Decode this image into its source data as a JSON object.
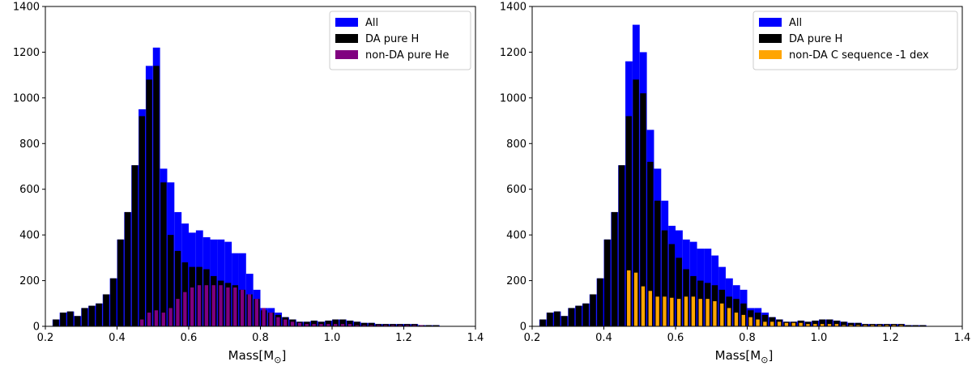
{
  "colors": {
    "all": "#0000ff",
    "da": "#000000",
    "he": "#800080",
    "c": "#ffa500"
  },
  "chart_data": [
    {
      "type": "bar",
      "xlabel_main": "Mass[M",
      "xlabel_sub": "⊙",
      "xlabel_close": "]",
      "ylabel": "",
      "xlim": [
        0.2,
        1.4
      ],
      "ylim": [
        0,
        1400
      ],
      "xticks": [
        0.2,
        0.4,
        0.6,
        0.8,
        1.0,
        1.2,
        1.4
      ],
      "xtick_labels": [
        "0.2",
        "0.4",
        "0.6",
        "0.8",
        "1.0",
        "1.2",
        "1.4"
      ],
      "yticks": [
        0,
        200,
        400,
        600,
        800,
        1000,
        1200,
        1400
      ],
      "ytick_labels": [
        "0",
        "200",
        "400",
        "600",
        "800",
        "1000",
        "1200",
        "1400"
      ],
      "legend_position": "top-right",
      "bin_edges": [
        0.22,
        0.24,
        0.26,
        0.28,
        0.3,
        0.32,
        0.34,
        0.36,
        0.38,
        0.4,
        0.42,
        0.44,
        0.46,
        0.48,
        0.5,
        0.52,
        0.54,
        0.56,
        0.58,
        0.6,
        0.62,
        0.64,
        0.66,
        0.68,
        0.7,
        0.72,
        0.74,
        0.76,
        0.78,
        0.8,
        0.82,
        0.84,
        0.86,
        0.88,
        0.9,
        0.92,
        0.94,
        0.96,
        0.98,
        1.0,
        1.02,
        1.04,
        1.06,
        1.08,
        1.1,
        1.12,
        1.14,
        1.16,
        1.18,
        1.2,
        1.22,
        1.24,
        1.26,
        1.28,
        1.3
      ],
      "series": [
        {
          "name": "All",
          "style": "filled",
          "values": [
            30,
            60,
            65,
            45,
            80,
            90,
            100,
            140,
            210,
            380,
            500,
            705,
            950,
            1140,
            1220,
            690,
            630,
            500,
            450,
            410,
            420,
            390,
            380,
            380,
            370,
            320,
            320,
            230,
            160,
            80,
            80,
            60,
            40,
            30,
            20,
            20,
            25,
            20,
            25,
            30,
            30,
            25,
            20,
            15,
            15,
            10,
            10,
            10,
            10,
            10,
            10,
            5,
            5,
            5
          ]
        },
        {
          "name": "DA pure H",
          "style": "bars",
          "values": [
            30,
            60,
            65,
            45,
            80,
            90,
            100,
            140,
            210,
            380,
            500,
            705,
            920,
            1080,
            1140,
            630,
            400,
            330,
            280,
            260,
            260,
            250,
            220,
            200,
            190,
            180,
            160,
            140,
            120,
            70,
            60,
            50,
            40,
            30,
            20,
            20,
            25,
            20,
            25,
            30,
            30,
            25,
            20,
            15,
            15,
            10,
            10,
            10,
            10,
            10,
            10,
            5,
            5,
            5
          ]
        },
        {
          "name": "non-DA pure He",
          "style": "bars",
          "values": [
            0,
            0,
            0,
            0,
            0,
            0,
            0,
            0,
            0,
            0,
            0,
            0,
            30,
            60,
            70,
            60,
            80,
            120,
            150,
            170,
            180,
            180,
            180,
            180,
            170,
            170,
            160,
            140,
            120,
            80,
            60,
            40,
            30,
            20,
            15,
            10,
            10,
            10,
            10,
            10,
            10,
            10,
            5,
            5,
            5,
            5,
            5,
            5,
            5,
            5,
            5,
            5,
            0,
            0
          ]
        }
      ]
    },
    {
      "type": "bar",
      "xlabel_main": "Mass[M",
      "xlabel_sub": "⊙",
      "xlabel_close": "]",
      "ylabel": "",
      "xlim": [
        0.2,
        1.4
      ],
      "ylim": [
        0,
        1400
      ],
      "xticks": [
        0.2,
        0.4,
        0.6,
        0.8,
        1.0,
        1.2,
        1.4
      ],
      "xtick_labels": [
        "0.2",
        "0.4",
        "0.6",
        "0.8",
        "1.0",
        "1.2",
        "1.4"
      ],
      "yticks": [
        0,
        200,
        400,
        600,
        800,
        1000,
        1200,
        1400
      ],
      "ytick_labels": [
        "0",
        "200",
        "400",
        "600",
        "800",
        "1000",
        "1200",
        "1400"
      ],
      "legend_position": "top-right",
      "bin_edges": [
        0.22,
        0.24,
        0.26,
        0.28,
        0.3,
        0.32,
        0.34,
        0.36,
        0.38,
        0.4,
        0.42,
        0.44,
        0.46,
        0.48,
        0.5,
        0.52,
        0.54,
        0.56,
        0.58,
        0.6,
        0.62,
        0.64,
        0.66,
        0.68,
        0.7,
        0.72,
        0.74,
        0.76,
        0.78,
        0.8,
        0.82,
        0.84,
        0.86,
        0.88,
        0.9,
        0.92,
        0.94,
        0.96,
        0.98,
        1.0,
        1.02,
        1.04,
        1.06,
        1.08,
        1.1,
        1.12,
        1.14,
        1.16,
        1.18,
        1.2,
        1.22,
        1.24,
        1.26,
        1.28,
        1.3
      ],
      "series": [
        {
          "name": "All",
          "style": "filled",
          "values": [
            30,
            60,
            65,
            45,
            80,
            90,
            100,
            140,
            210,
            380,
            500,
            705,
            1160,
            1320,
            1200,
            860,
            690,
            550,
            440,
            420,
            380,
            370,
            340,
            340,
            310,
            260,
            210,
            180,
            160,
            80,
            80,
            60,
            40,
            30,
            20,
            20,
            25,
            20,
            25,
            30,
            30,
            25,
            20,
            15,
            15,
            10,
            10,
            10,
            10,
            10,
            10,
            5,
            5,
            5
          ]
        },
        {
          "name": "DA pure H",
          "style": "bars",
          "values": [
            30,
            60,
            65,
            45,
            80,
            90,
            100,
            140,
            210,
            380,
            500,
            705,
            920,
            1080,
            1020,
            720,
            550,
            420,
            360,
            300,
            250,
            220,
            200,
            190,
            180,
            160,
            130,
            120,
            100,
            70,
            60,
            50,
            40,
            30,
            20,
            20,
            25,
            20,
            25,
            30,
            30,
            25,
            20,
            15,
            15,
            10,
            10,
            10,
            10,
            10,
            10,
            5,
            5,
            5
          ]
        },
        {
          "name": "non-DA C sequence -1 dex",
          "style": "bars",
          "values": [
            0,
            0,
            0,
            0,
            0,
            0,
            0,
            0,
            0,
            0,
            0,
            0,
            245,
            235,
            175,
            155,
            130,
            130,
            125,
            120,
            130,
            130,
            120,
            120,
            110,
            100,
            80,
            60,
            50,
            40,
            30,
            20,
            20,
            20,
            15,
            15,
            15,
            10,
            10,
            10,
            10,
            10,
            5,
            5,
            5,
            5,
            5,
            5,
            5,
            5,
            5,
            0,
            0,
            0
          ]
        }
      ]
    }
  ]
}
